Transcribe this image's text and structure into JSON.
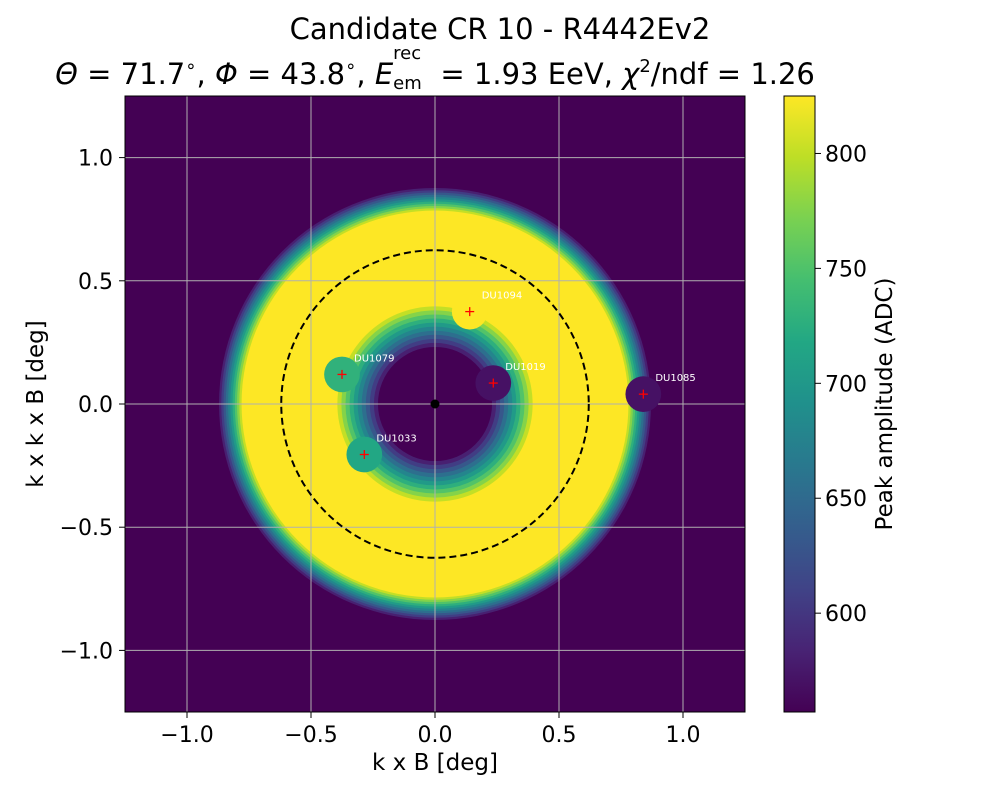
{
  "figure": {
    "title_line1": "Candidate CR 10 - R4442Ev2",
    "theta_label": "Θ",
    "theta_value": "71.7",
    "phi_label": "Φ",
    "phi_value": "43.8",
    "energy_symbol": "E",
    "energy_sup": "rec",
    "energy_sub": "em",
    "energy_value": "1.93 EeV",
    "chi_symbol": "χ",
    "chi_sup": "2",
    "chi_rest": "/ndf",
    "chi_value": "1.26"
  },
  "chart_data": {
    "type": "heatmap",
    "title": "Candidate CR 10 - R4442Ev2",
    "xlabel": "k x B [deg]",
    "ylabel": "k x k x B [deg]",
    "xlim": [
      -1.25,
      1.25
    ],
    "ylim": [
      -1.25,
      1.25
    ],
    "xticks": [
      -1.0,
      -0.5,
      0.0,
      0.5,
      1.0
    ],
    "yticks": [
      -1.0,
      -0.5,
      0.0,
      0.5,
      1.0
    ],
    "xtick_labels": [
      "−1.0",
      "−0.5",
      "0.0",
      "0.5",
      "1.0"
    ],
    "ytick_labels": [
      "−1.0",
      "−0.5",
      "0.0",
      "0.5",
      "1.0"
    ],
    "grid": true,
    "colormap": "viridis",
    "colorbar": {
      "label": "Peak amplitude (ADC)",
      "vmin": 557,
      "vmax": 825,
      "ticks": [
        600,
        650,
        700,
        750,
        800
      ]
    },
    "ring_model": {
      "center": [
        0.0,
        0.0
      ],
      "cherenkov_radius": 0.62,
      "plateau_inner_radius": 0.41,
      "plateau_outer_radius": 0.78,
      "inner_falloff_width": 0.18,
      "outer_falloff_width": 0.1,
      "level_steps": 11
    },
    "cherenkov_circle_radius": 0.62,
    "shower_core": [
      0.0,
      0.0
    ],
    "detectors": [
      {
        "name": "DU1094",
        "x": 0.14,
        "y": 0.375,
        "amplitude": 825
      },
      {
        "name": "DU1079",
        "x": -0.375,
        "y": 0.12,
        "amplitude": 730
      },
      {
        "name": "DU1019",
        "x": 0.235,
        "y": 0.085,
        "amplitude": 570
      },
      {
        "name": "DU1085",
        "x": 0.84,
        "y": 0.04,
        "amplitude": 570
      },
      {
        "name": "DU1033",
        "x": -0.285,
        "y": -0.205,
        "amplitude": 718
      }
    ],
    "colors": {
      "marker": "#ff0000",
      "detector_label": "#ffffff",
      "grid": "#b0b0b0",
      "circle": "#000000",
      "core": "#000000"
    }
  }
}
